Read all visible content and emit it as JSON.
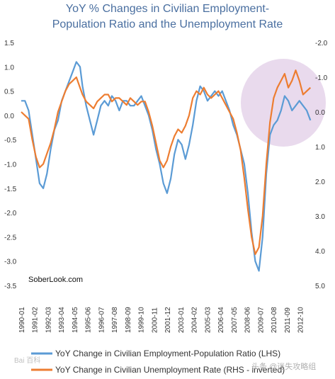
{
  "chart_data": {
    "type": "line",
    "title_line1": "YoY % Changes in Civilian Employment-",
    "title_line2": "Population Ratio and the Unemployment Rate",
    "source_label": "SoberLook.com",
    "x_tick_labels": [
      "1990-01",
      "1991-02",
      "1992-03",
      "1993-04",
      "1994-05",
      "1995-06",
      "1996-07",
      "1997-08",
      "1998-09",
      "1999-10",
      "2000-11",
      "2001-12",
      "2003-01",
      "2004-02",
      "2005-03",
      "2006-04",
      "2007-05",
      "2008-06",
      "2009-07",
      "2010-08",
      "2011-09",
      "2012-10"
    ],
    "left_axis": {
      "range": [
        -3.5,
        1.5
      ],
      "ticks": [
        "1.5",
        "1.0",
        "0.5",
        "0.0",
        "-0.5",
        "-1.0",
        "-1.5",
        "-2.0",
        "-2.5",
        "-3.0",
        "-3.5"
      ]
    },
    "right_axis": {
      "range": [
        -2.0,
        5.0
      ],
      "inverted": true,
      "ticks": [
        "-2.0",
        "-1.0",
        "0.0",
        "1.0",
        "2.0",
        "3.0",
        "4.0",
        "5.0"
      ]
    },
    "x_range": [
      1990.0,
      2013.7
    ],
    "grid": false,
    "legend_position": "bottom",
    "highlight_annotation": "purple circle around 2010-2013 recovery",
    "series": [
      {
        "name": "YoY Change in Civilian Employment-Population Ratio (LHS)",
        "color": "#5b9bd5",
        "axis": "left",
        "x": [
          1990.0,
          1990.3,
          1990.6,
          1990.9,
          1991.2,
          1991.5,
          1991.8,
          1992.1,
          1992.4,
          1992.7,
          1993.0,
          1993.3,
          1993.6,
          1993.9,
          1994.2,
          1994.5,
          1994.8,
          1995.0,
          1995.3,
          1995.6,
          1995.9,
          1996.2,
          1996.5,
          1996.8,
          1997.1,
          1997.4,
          1997.7,
          1998.0,
          1998.3,
          1998.6,
          1998.9,
          1999.2,
          1999.5,
          1999.8,
          2000.1,
          2000.4,
          2000.7,
          2001.0,
          2001.3,
          2001.6,
          2001.9,
          2002.2,
          2002.5,
          2002.8,
          2003.1,
          2003.4,
          2003.7,
          2004.0,
          2004.3,
          2004.6,
          2004.9,
          2005.2,
          2005.5,
          2005.8,
          2006.1,
          2006.4,
          2006.7,
          2007.0,
          2007.3,
          2007.6,
          2007.9,
          2008.2,
          2008.5,
          2008.8,
          2009.1,
          2009.4,
          2009.7,
          2010.0,
          2010.3,
          2010.6,
          2010.9,
          2011.2,
          2011.5,
          2011.8,
          2012.1,
          2012.4,
          2012.7,
          2013.0,
          2013.3,
          2013.6
        ],
        "values": [
          0.3,
          0.3,
          0.1,
          -0.4,
          -0.9,
          -1.4,
          -1.5,
          -1.2,
          -0.7,
          -0.3,
          -0.1,
          0.3,
          0.5,
          0.7,
          0.9,
          1.1,
          1.0,
          0.6,
          0.2,
          -0.1,
          -0.4,
          -0.1,
          0.2,
          0.3,
          0.2,
          0.4,
          0.3,
          0.1,
          0.3,
          0.3,
          0.2,
          0.2,
          0.3,
          0.4,
          0.2,
          0.0,
          -0.3,
          -0.7,
          -1.0,
          -1.4,
          -1.6,
          -1.3,
          -0.8,
          -0.5,
          -0.6,
          -0.9,
          -0.6,
          -0.2,
          0.3,
          0.6,
          0.5,
          0.3,
          0.4,
          0.5,
          0.4,
          0.5,
          0.3,
          0.1,
          -0.2,
          -0.4,
          -0.7,
          -1.0,
          -1.6,
          -2.4,
          -3.0,
          -3.2,
          -2.5,
          -1.2,
          -0.4,
          -0.2,
          -0.1,
          0.1,
          0.4,
          0.3,
          0.1,
          0.2,
          0.3,
          0.2,
          0.1,
          -0.1
        ]
      },
      {
        "name": "YoY Change in Civilian Unemployment Rate (RHS - inverted)",
        "color": "#ed7d31",
        "axis": "right",
        "x": [
          1990.0,
          1990.3,
          1990.6,
          1990.9,
          1991.2,
          1991.5,
          1991.8,
          1992.1,
          1992.4,
          1992.7,
          1993.0,
          1993.3,
          1993.6,
          1993.9,
          1994.2,
          1994.5,
          1994.8,
          1995.0,
          1995.3,
          1995.6,
          1995.9,
          1996.2,
          1996.5,
          1996.8,
          1997.1,
          1997.4,
          1997.7,
          1998.0,
          1998.3,
          1998.6,
          1998.9,
          1999.2,
          1999.5,
          1999.8,
          2000.1,
          2000.4,
          2000.7,
          2001.0,
          2001.3,
          2001.6,
          2001.9,
          2002.2,
          2002.5,
          2002.8,
          2003.1,
          2003.4,
          2003.7,
          2004.0,
          2004.3,
          2004.6,
          2004.9,
          2005.2,
          2005.5,
          2005.8,
          2006.1,
          2006.4,
          2006.7,
          2007.0,
          2007.3,
          2007.6,
          2007.9,
          2008.2,
          2008.5,
          2008.8,
          2009.1,
          2009.4,
          2009.7,
          2010.0,
          2010.3,
          2010.6,
          2010.9,
          2011.2,
          2011.5,
          2011.8,
          2012.1,
          2012.4,
          2012.7,
          2013.0,
          2013.3,
          2013.6
        ],
        "values": [
          0.0,
          0.1,
          0.2,
          0.8,
          1.3,
          1.6,
          1.5,
          1.2,
          0.9,
          0.5,
          0.0,
          -0.3,
          -0.6,
          -0.8,
          -0.9,
          -1.0,
          -0.7,
          -0.5,
          -0.3,
          -0.2,
          -0.1,
          -0.3,
          -0.4,
          -0.5,
          -0.5,
          -0.3,
          -0.4,
          -0.4,
          -0.3,
          -0.2,
          -0.4,
          -0.3,
          -0.2,
          -0.3,
          -0.3,
          0.0,
          0.4,
          0.9,
          1.4,
          1.6,
          1.4,
          1.0,
          0.7,
          0.5,
          0.6,
          0.4,
          0.1,
          -0.4,
          -0.6,
          -0.5,
          -0.7,
          -0.5,
          -0.4,
          -0.5,
          -0.6,
          -0.4,
          -0.2,
          0.0,
          0.2,
          0.6,
          1.1,
          1.9,
          2.8,
          3.6,
          4.1,
          3.9,
          3.0,
          1.5,
          0.3,
          -0.4,
          -0.7,
          -0.9,
          -1.1,
          -0.7,
          -0.9,
          -1.2,
          -0.9,
          -0.5,
          -0.6,
          -0.7
        ]
      }
    ]
  }
}
